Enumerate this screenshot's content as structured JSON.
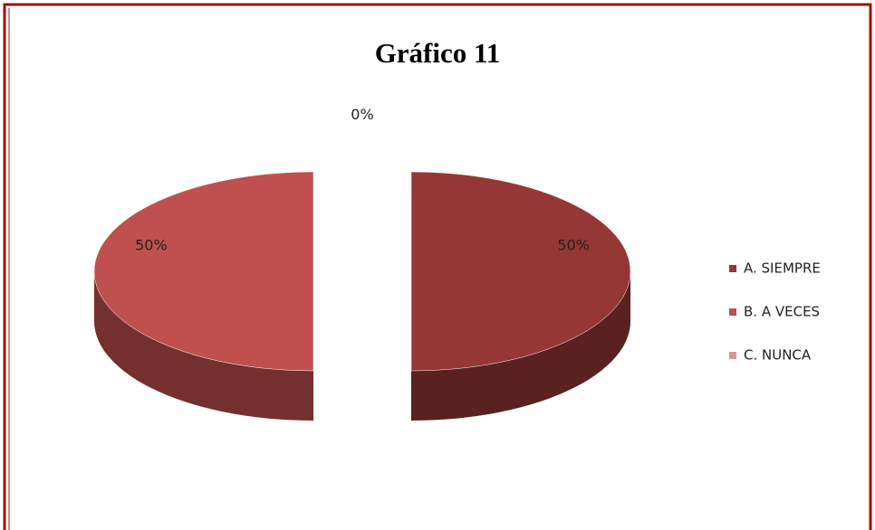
{
  "chart_data": {
    "type": "pie",
    "title": "Gráfico 11",
    "categories": [
      "A. SIEMPRE",
      "B. A VECES",
      "C. NUNCA"
    ],
    "values": [
      50,
      50,
      0
    ],
    "value_labels": [
      "50%",
      "50%",
      "0%"
    ],
    "colors": [
      "#953735",
      "#c0504d",
      "#d99694"
    ],
    "legend": "right"
  }
}
